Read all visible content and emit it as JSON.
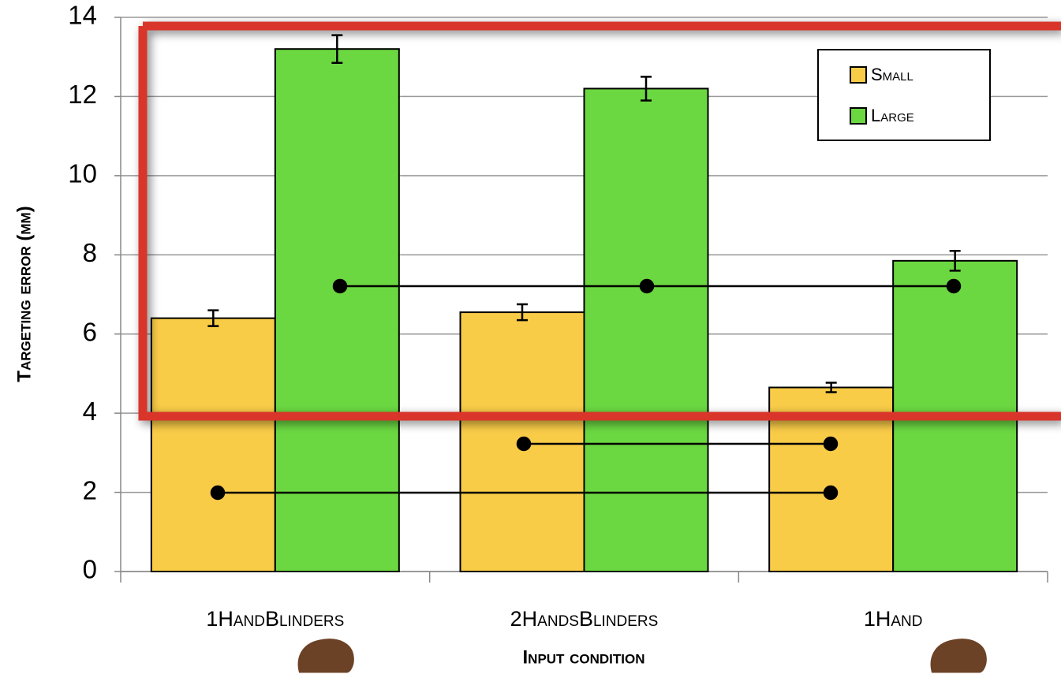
{
  "chart_data": {
    "type": "bar",
    "y_label": "Targeting error (mm)",
    "x_label": "Input condition",
    "categories": [
      "1HandBlinders",
      "2HandsBlinders",
      "1Hand"
    ],
    "series": [
      {
        "name": "Small",
        "color": "#f9cc48",
        "values": [
          6.4,
          6.55,
          4.65
        ],
        "errors": [
          0.2,
          0.2,
          0.12
        ]
      },
      {
        "name": "Large",
        "color": "#6bd841",
        "values": [
          13.2,
          12.2,
          7.85
        ],
        "errors": [
          0.35,
          0.3,
          0.25
        ]
      }
    ],
    "ylim": [
      0,
      14
    ],
    "yticks": [
      0,
      2,
      4,
      6,
      8,
      10,
      12,
      14
    ],
    "grid": true,
    "legend": "upper right"
  }
}
